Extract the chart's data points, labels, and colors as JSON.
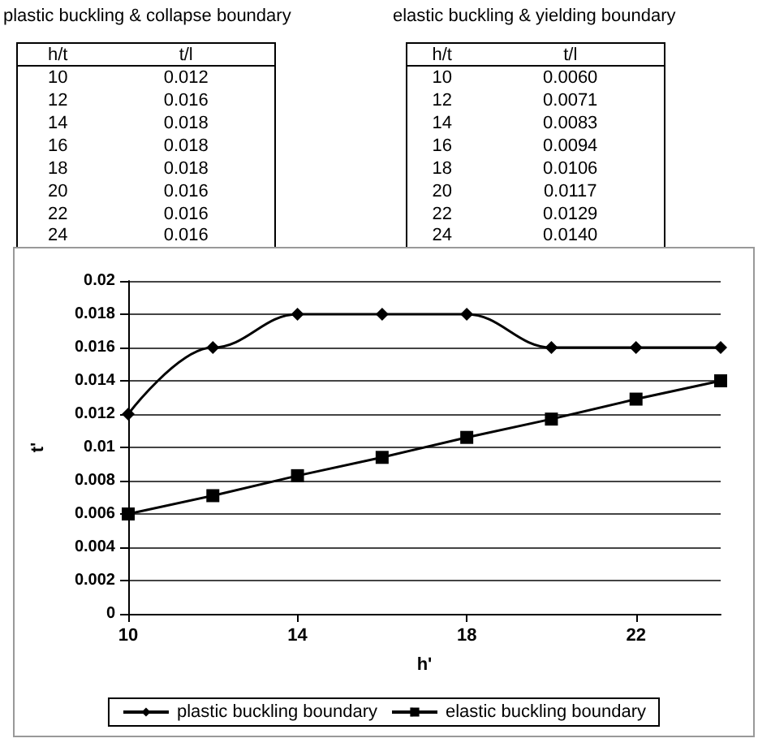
{
  "chart_data": {
    "type": "line",
    "xlabel": "h'",
    "ylabel": "t'",
    "annotations": [
      "plastic buckling & collapse boundary",
      "h/t",
      "t/l",
      "10",
      "0.012",
      "12",
      "0.016",
      "14",
      "0.018",
      "16",
      "0.018",
      "18",
      "0.018",
      "20",
      "0.016",
      "22",
      "0.016",
      "24",
      "0.016",
      "elastic buckling & yielding boundary",
      "h/t",
      "t/l",
      "10",
      "0.0060",
      "12",
      "0.0071",
      "14",
      "0.0083",
      "16",
      "0.0094",
      "18",
      "0.0106",
      "20",
      "0.0117",
      "22",
      "0.0129",
      "24",
      "0.0140"
    ],
    "x": [
      10,
      12,
      14,
      16,
      18,
      20,
      22,
      24
    ],
    "series": [
      {
        "name": "plastic buckling boundary",
        "color": "#000000",
        "marker": "diamond",
        "values": [
          0.012,
          0.016,
          0.018,
          0.018,
          0.018,
          0.016,
          0.016,
          0.016
        ]
      },
      {
        "name": "elastic buckling boundary",
        "color": "#000000",
        "marker": "square",
        "values": [
          0.006,
          0.0071,
          0.0083,
          0.0094,
          0.0106,
          0.0117,
          0.0129,
          0.014
        ]
      }
    ],
    "xlim": [
      10,
      24
    ],
    "xticks": [
      10,
      14,
      18,
      22
    ],
    "ylim": [
      0,
      0.02
    ],
    "yticks": [
      0,
      0.002,
      0.004,
      0.006,
      0.008,
      0.01,
      0.012,
      0.014,
      0.016,
      0.018,
      0.02
    ],
    "grid": "y",
    "legend": "bottom"
  }
}
